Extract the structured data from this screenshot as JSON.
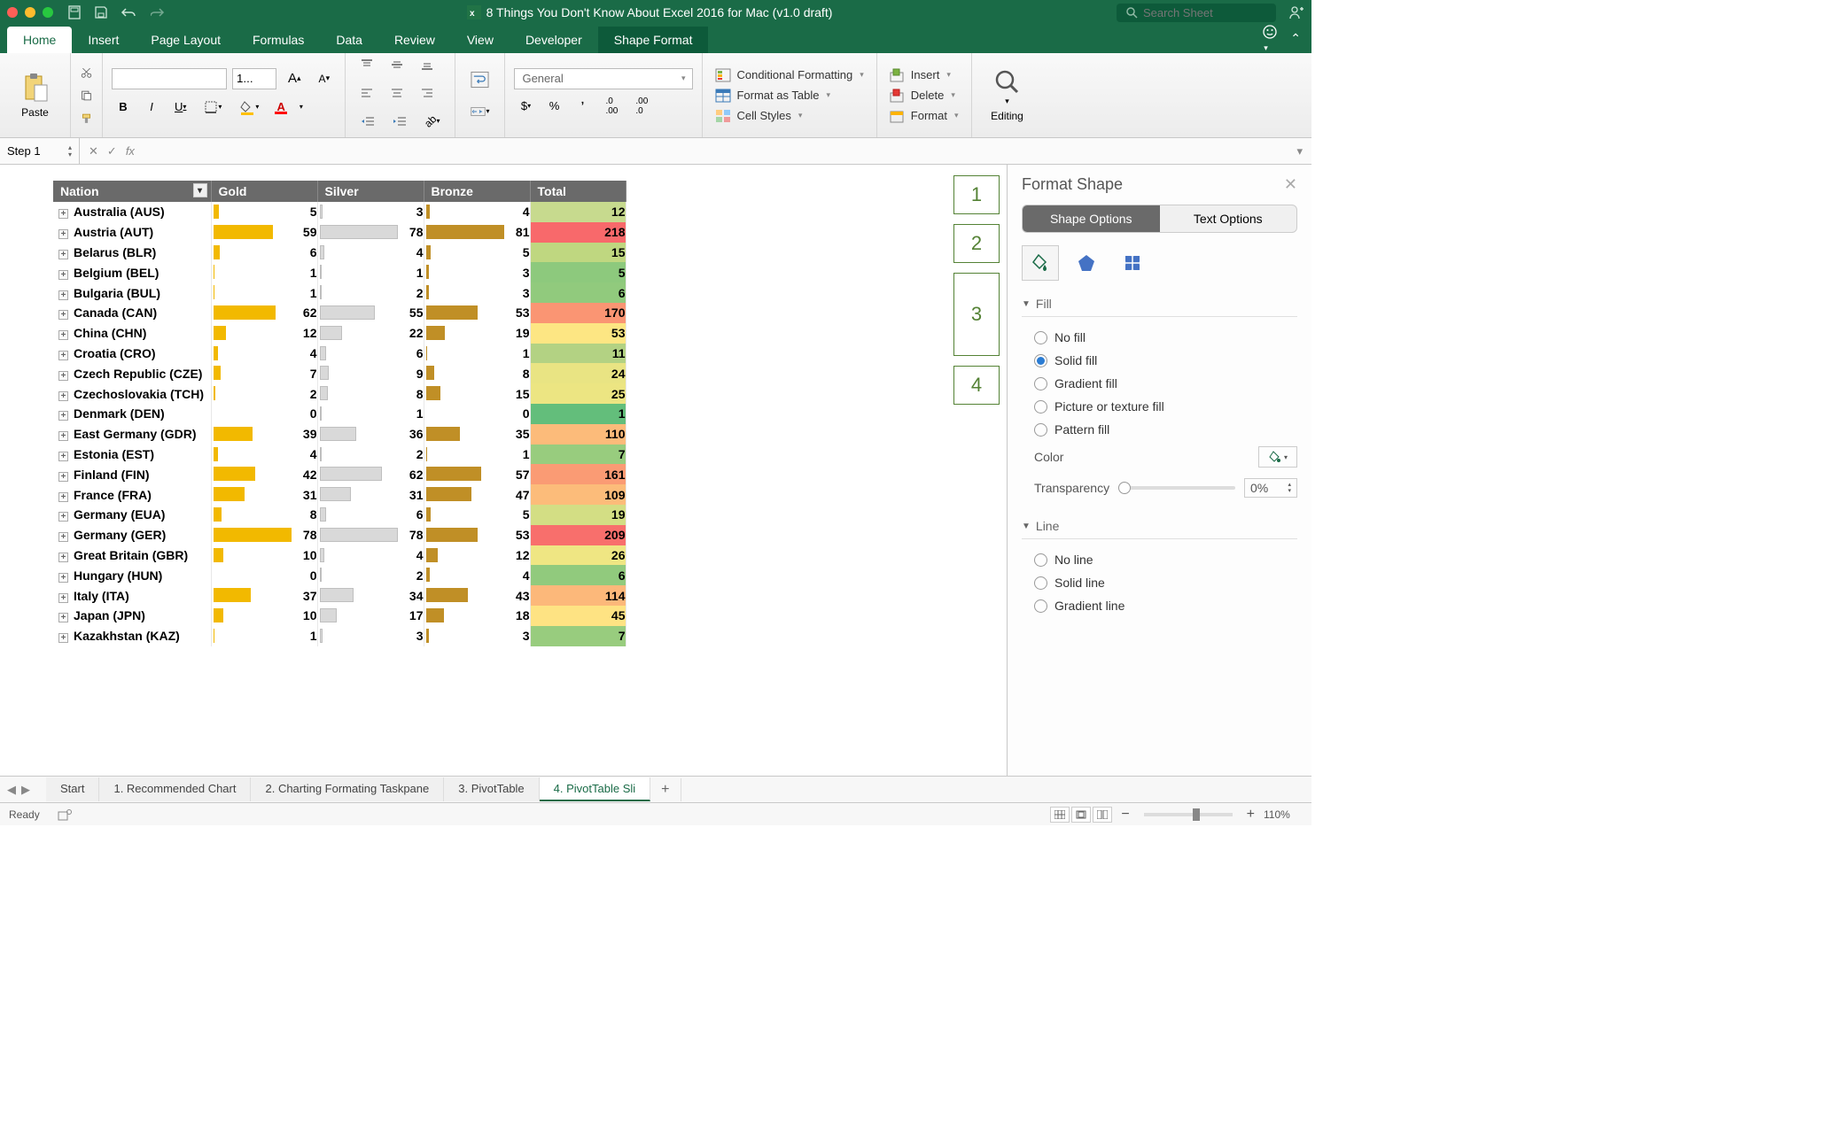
{
  "titlebar": {
    "doc_title": "8 Things You Don't Know About Excel 2016 for Mac (v1.0 draft)",
    "search_placeholder": "Search Sheet"
  },
  "ribbon_tabs": [
    "Home",
    "Insert",
    "Page Layout",
    "Formulas",
    "Data",
    "Review",
    "View",
    "Developer",
    "Shape Format"
  ],
  "ribbon_tabs_active": 0,
  "ribbon_tabs_context": 8,
  "ribbon": {
    "paste_label": "Paste",
    "font_name": "",
    "font_size": "1...",
    "number_format": "General",
    "cond_fmt": "Conditional Formatting",
    "fmt_table": "Format as Table",
    "cell_styles": "Cell Styles",
    "insert": "Insert",
    "delete": "Delete",
    "format": "Format",
    "editing": "Editing"
  },
  "formula_bar": {
    "name_box": "Step 1",
    "formula": ""
  },
  "table": {
    "headers": [
      "Nation",
      "Gold",
      "Silver",
      "Bronze",
      "Total"
    ],
    "rows": [
      {
        "nation": "Australia (AUS)",
        "gold": 5,
        "silver": 3,
        "bronze": 4,
        "total": 12,
        "tc": "#c7da8e"
      },
      {
        "nation": "Austria (AUT)",
        "gold": 59,
        "silver": 78,
        "bronze": 81,
        "total": 218,
        "tc": "#f8696b"
      },
      {
        "nation": "Belarus (BLR)",
        "gold": 6,
        "silver": 4,
        "bronze": 5,
        "total": 15,
        "tc": "#bfd780"
      },
      {
        "nation": "Belgium (BEL)",
        "gold": 1,
        "silver": 1,
        "bronze": 3,
        "total": 5,
        "tc": "#8dc97d"
      },
      {
        "nation": "Bulgaria (BUL)",
        "gold": 1,
        "silver": 2,
        "bronze": 3,
        "total": 6,
        "tc": "#91ca7d"
      },
      {
        "nation": "Canada (CAN)",
        "gold": 62,
        "silver": 55,
        "bronze": 53,
        "total": 170,
        "tc": "#fa9573"
      },
      {
        "nation": "China (CHN)",
        "gold": 12,
        "silver": 22,
        "bronze": 19,
        "total": 53,
        "tc": "#fde683"
      },
      {
        "nation": "Croatia (CRO)",
        "gold": 4,
        "silver": 6,
        "bronze": 1,
        "total": 11,
        "tc": "#b3d283"
      },
      {
        "nation": "Czech Republic (CZE)",
        "gold": 7,
        "silver": 9,
        "bronze": 8,
        "total": 24,
        "tc": "#e9e483"
      },
      {
        "nation": "Czechoslovakia (TCH)",
        "gold": 2,
        "silver": 8,
        "bronze": 15,
        "total": 25,
        "tc": "#ece582"
      },
      {
        "nation": "Denmark (DEN)",
        "gold": 0,
        "silver": 1,
        "bronze": 0,
        "total": 1,
        "tc": "#63be7b"
      },
      {
        "nation": "East Germany (GDR)",
        "gold": 39,
        "silver": 36,
        "bronze": 35,
        "total": 110,
        "tc": "#fcbb7a"
      },
      {
        "nation": "Estonia (EST)",
        "gold": 4,
        "silver": 2,
        "bronze": 1,
        "total": 7,
        "tc": "#98cc7e"
      },
      {
        "nation": "Finland (FIN)",
        "gold": 42,
        "silver": 62,
        "bronze": 57,
        "total": 161,
        "tc": "#fa9b74"
      },
      {
        "nation": "France (FRA)",
        "gold": 31,
        "silver": 31,
        "bronze": 47,
        "total": 109,
        "tc": "#fcbc7a"
      },
      {
        "nation": "Germany (EUA)",
        "gold": 8,
        "silver": 6,
        "bronze": 5,
        "total": 19,
        "tc": "#d3de84"
      },
      {
        "nation": "Germany (GER)",
        "gold": 78,
        "silver": 78,
        "bronze": 53,
        "total": 209,
        "tc": "#f86f6c"
      },
      {
        "nation": "Great Britain (GBR)",
        "gold": 10,
        "silver": 4,
        "bronze": 12,
        "total": 26,
        "tc": "#efe683"
      },
      {
        "nation": "Hungary (HUN)",
        "gold": 0,
        "silver": 2,
        "bronze": 4,
        "total": 6,
        "tc": "#91ca7d"
      },
      {
        "nation": "Italy (ITA)",
        "gold": 37,
        "silver": 34,
        "bronze": 43,
        "total": 114,
        "tc": "#fcb87a"
      },
      {
        "nation": "Japan (JPN)",
        "gold": 10,
        "silver": 17,
        "bronze": 18,
        "total": 45,
        "tc": "#fee383"
      },
      {
        "nation": "Kazakhstan (KAZ)",
        "gold": 1,
        "silver": 3,
        "bronze": 3,
        "total": 7,
        "tc": "#98cc7e"
      }
    ],
    "max_gold": 78,
    "max_silver": 78,
    "max_bronze": 81,
    "bar_colors": {
      "gold": "#f2b900",
      "silver": "#d9d9d9",
      "bronze": "#c08f26"
    }
  },
  "slicer_labels": [
    "1",
    "2",
    "3",
    "4"
  ],
  "format_pane": {
    "title": "Format Shape",
    "tabs": [
      "Shape Options",
      "Text Options"
    ],
    "fill_section": "Fill",
    "fill_options": [
      "No fill",
      "Solid fill",
      "Gradient fill",
      "Picture or texture fill",
      "Pattern fill"
    ],
    "fill_selected": 1,
    "color_label": "Color",
    "transparency_label": "Transparency",
    "transparency_value": "0%",
    "line_section": "Line",
    "line_options": [
      "No line",
      "Solid line",
      "Gradient line"
    ]
  },
  "sheet_tabs": [
    "Start",
    "1. Recommended Chart",
    "2. Charting Formating Taskpane",
    "3. PivotTable",
    "4. PivotTable Sli"
  ],
  "sheet_tabs_active": 4,
  "status_bar": {
    "ready": "Ready",
    "zoom": "110%"
  }
}
